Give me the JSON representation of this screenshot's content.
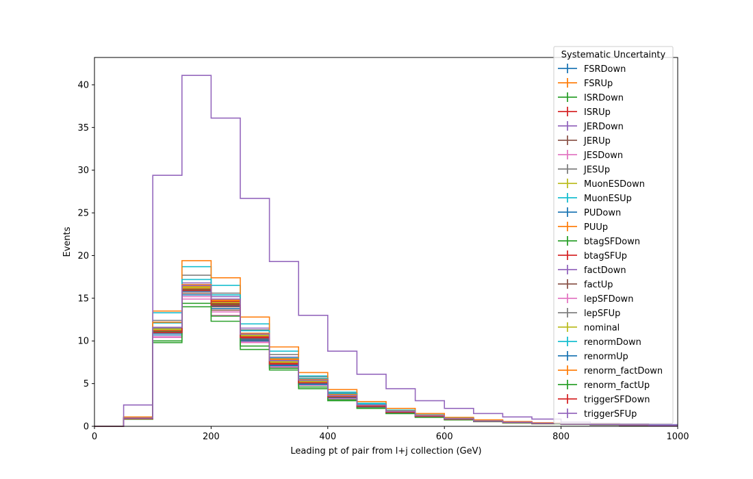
{
  "chart_data": {
    "type": "histogram-step",
    "xlabel": "Leading pt of pair from l+j collection (GeV)",
    "ylabel": "Events",
    "xlim": [
      0,
      1000
    ],
    "ylim": [
      0,
      43.2
    ],
    "xticks": [
      0,
      200,
      400,
      600,
      800,
      1000
    ],
    "yticks": [
      0,
      5,
      10,
      15,
      20,
      25,
      30,
      35,
      40
    ],
    "grid": false,
    "legend": {
      "title": "Systematic Uncertainty",
      "placement": "top-right"
    },
    "bin_edges": [
      0,
      50,
      100,
      150,
      200,
      250,
      300,
      350,
      400,
      450,
      500,
      550,
      600,
      650,
      700,
      750,
      800,
      850,
      900,
      950,
      1000
    ],
    "series": [
      {
        "name": "FSRDown",
        "color": "#1f77b4",
        "values": [
          0,
          0.9,
          11.0,
          15.8,
          14.2,
          10.3,
          7.2,
          5.0,
          3.4,
          2.3,
          1.6,
          1.2,
          0.85,
          0.6,
          0.45,
          0.35,
          0.25,
          0.2,
          0.15,
          0.1
        ]
      },
      {
        "name": "FSRUp",
        "color": "#ff7f0e",
        "values": [
          0,
          1.0,
          11.6,
          16.4,
          14.7,
          10.8,
          7.8,
          5.5,
          3.7,
          2.5,
          1.8,
          1.3,
          0.9,
          0.65,
          0.5,
          0.38,
          0.28,
          0.2,
          0.15,
          0.1
        ]
      },
      {
        "name": "ISRDown",
        "color": "#2ca02c",
        "values": [
          0,
          0.9,
          11.1,
          16.0,
          14.3,
          10.4,
          7.4,
          5.1,
          3.5,
          2.4,
          1.7,
          1.2,
          0.85,
          0.6,
          0.45,
          0.35,
          0.25,
          0.2,
          0.15,
          0.1
        ]
      },
      {
        "name": "ISRUp",
        "color": "#d62728",
        "values": [
          0,
          0.95,
          11.3,
          16.1,
          14.4,
          10.6,
          7.5,
          5.2,
          3.6,
          2.4,
          1.7,
          1.2,
          0.85,
          0.6,
          0.45,
          0.35,
          0.25,
          0.2,
          0.15,
          0.1
        ]
      },
      {
        "name": "JERDown",
        "color": "#9467bd",
        "values": [
          0,
          1.0,
          11.2,
          16.8,
          15.2,
          11.5,
          8.1,
          5.6,
          3.8,
          2.6,
          1.8,
          1.3,
          0.9,
          0.65,
          0.5,
          0.38,
          0.28,
          0.2,
          0.15,
          0.1
        ]
      },
      {
        "name": "JERUp",
        "color": "#8c564b",
        "values": [
          0,
          0.9,
          10.9,
          15.6,
          13.6,
          10.1,
          7.1,
          4.9,
          3.3,
          2.3,
          1.6,
          1.15,
          0.8,
          0.6,
          0.45,
          0.35,
          0.25,
          0.2,
          0.15,
          0.1
        ]
      },
      {
        "name": "JESDown",
        "color": "#e377c2",
        "values": [
          0,
          0.85,
          10.4,
          14.9,
          13.0,
          9.8,
          6.9,
          4.8,
          3.2,
          2.2,
          1.55,
          1.1,
          0.8,
          0.55,
          0.42,
          0.32,
          0.24,
          0.18,
          0.14,
          0.1
        ]
      },
      {
        "name": "JESUp",
        "color": "#7f7f7f",
        "values": [
          0,
          1.0,
          12.4,
          17.7,
          15.6,
          11.3,
          8.4,
          5.8,
          3.9,
          2.7,
          1.9,
          1.35,
          0.95,
          0.7,
          0.52,
          0.4,
          0.3,
          0.22,
          0.16,
          0.12
        ]
      },
      {
        "name": "MuonESDown",
        "color": "#bcbd22",
        "values": [
          0,
          0.95,
          11.4,
          16.3,
          14.5,
          10.7,
          7.6,
          5.3,
          3.6,
          2.45,
          1.7,
          1.2,
          0.85,
          0.6,
          0.45,
          0.35,
          0.25,
          0.2,
          0.15,
          0.1
        ]
      },
      {
        "name": "MuonESUp",
        "color": "#17becf",
        "values": [
          0,
          1.05,
          13.3,
          18.7,
          16.5,
          12.0,
          8.8,
          5.9,
          4.0,
          2.7,
          1.9,
          1.35,
          0.95,
          0.7,
          0.52,
          0.4,
          0.3,
          0.22,
          0.16,
          0.12
        ]
      },
      {
        "name": "PUDown",
        "color": "#1f77b4",
        "values": [
          0,
          0.9,
          10.9,
          15.9,
          14.1,
          10.2,
          7.2,
          5.0,
          3.4,
          2.3,
          1.6,
          1.2,
          0.85,
          0.6,
          0.45,
          0.35,
          0.25,
          0.2,
          0.15,
          0.1
        ]
      },
      {
        "name": "PUUp",
        "color": "#ff7f0e",
        "values": [
          0,
          1.1,
          13.5,
          19.4,
          17.4,
          12.8,
          9.3,
          6.3,
          4.3,
          2.9,
          2.1,
          1.5,
          1.05,
          0.75,
          0.56,
          0.42,
          0.32,
          0.24,
          0.18,
          0.13
        ]
      },
      {
        "name": "btagSFDown",
        "color": "#2ca02c",
        "values": [
          0,
          0.85,
          9.8,
          14.0,
          12.3,
          9.0,
          6.6,
          4.4,
          3.0,
          2.1,
          1.5,
          1.05,
          0.75,
          0.55,
          0.4,
          0.3,
          0.22,
          0.16,
          0.12,
          0.09
        ]
      },
      {
        "name": "btagSFUp",
        "color": "#d62728",
        "values": [
          0,
          0.95,
          11.2,
          16.2,
          14.6,
          10.5,
          7.4,
          5.2,
          3.5,
          2.4,
          1.7,
          1.2,
          0.85,
          0.6,
          0.45,
          0.35,
          0.25,
          0.2,
          0.15,
          0.1
        ]
      },
      {
        "name": "factDown",
        "color": "#9467bd",
        "values": [
          0,
          2.5,
          29.4,
          41.1,
          36.1,
          26.7,
          19.3,
          13.0,
          8.8,
          6.1,
          4.4,
          3.0,
          2.1,
          1.5,
          1.1,
          0.85,
          0.5,
          0.35,
          0.25,
          0.2
        ]
      },
      {
        "name": "factUp",
        "color": "#8c564b",
        "values": [
          0,
          0.9,
          11.0,
          15.9,
          14.0,
          10.3,
          7.3,
          5.1,
          3.4,
          2.3,
          1.6,
          1.15,
          0.82,
          0.58,
          0.44,
          0.34,
          0.25,
          0.19,
          0.14,
          0.1
        ]
      },
      {
        "name": "lepSFDown",
        "color": "#e377c2",
        "values": [
          0,
          0.9,
          10.5,
          15.2,
          13.4,
          9.9,
          7.0,
          4.9,
          3.3,
          2.25,
          1.6,
          1.1,
          0.8,
          0.56,
          0.43,
          0.33,
          0.24,
          0.18,
          0.14,
          0.1
        ]
      },
      {
        "name": "lepSFUp",
        "color": "#7f7f7f",
        "values": [
          0,
          0.95,
          11.5,
          16.5,
          14.8,
          10.9,
          7.7,
          5.4,
          3.6,
          2.5,
          1.75,
          1.25,
          0.88,
          0.62,
          0.47,
          0.36,
          0.26,
          0.2,
          0.15,
          0.11
        ]
      },
      {
        "name": "nominal",
        "color": "#bcbd22",
        "values": [
          0,
          0.95,
          11.3,
          16.2,
          14.5,
          10.6,
          7.5,
          5.2,
          3.5,
          2.4,
          1.7,
          1.2,
          0.85,
          0.6,
          0.45,
          0.35,
          0.25,
          0.2,
          0.15,
          0.1
        ]
      },
      {
        "name": "renormDown",
        "color": "#17becf",
        "values": [
          0,
          1.0,
          12.1,
          17.2,
          15.4,
          11.2,
          8.0,
          5.6,
          3.8,
          2.6,
          1.85,
          1.3,
          0.92,
          0.66,
          0.5,
          0.38,
          0.28,
          0.21,
          0.16,
          0.11
        ]
      },
      {
        "name": "renormUp",
        "color": "#1f77b4",
        "values": [
          0,
          0.9,
          10.7,
          15.4,
          13.8,
          10.0,
          7.1,
          4.9,
          3.35,
          2.3,
          1.6,
          1.15,
          0.8,
          0.57,
          0.43,
          0.33,
          0.24,
          0.18,
          0.14,
          0.1
        ]
      },
      {
        "name": "renorm_factDown",
        "color": "#ff7f0e",
        "values": [
          0,
          1.0,
          12.2,
          16.6,
          14.8,
          10.9,
          7.9,
          5.5,
          3.7,
          2.5,
          1.8,
          1.3,
          0.9,
          0.65,
          0.5,
          0.38,
          0.28,
          0.2,
          0.15,
          0.1
        ]
      },
      {
        "name": "renorm_factUp",
        "color": "#2ca02c",
        "values": [
          0,
          0.85,
          10.0,
          14.4,
          12.9,
          9.4,
          6.8,
          4.6,
          3.1,
          2.15,
          1.5,
          1.08,
          0.76,
          0.55,
          0.41,
          0.31,
          0.23,
          0.17,
          0.13,
          0.09
        ]
      },
      {
        "name": "triggerSFDown",
        "color": "#d62728",
        "values": [
          0,
          0.9,
          11.0,
          15.9,
          14.2,
          10.4,
          7.3,
          5.1,
          3.45,
          2.35,
          1.65,
          1.18,
          0.83,
          0.59,
          0.44,
          0.34,
          0.25,
          0.19,
          0.14,
          0.1
        ]
      },
      {
        "name": "triggerSFUp",
        "color": "#9467bd",
        "values": [
          0,
          0.95,
          11.6,
          16.5,
          14.9,
          10.8,
          7.7,
          5.4,
          3.6,
          2.5,
          1.75,
          1.25,
          0.88,
          0.62,
          0.47,
          0.36,
          0.26,
          0.2,
          0.15,
          0.11
        ]
      }
    ]
  }
}
